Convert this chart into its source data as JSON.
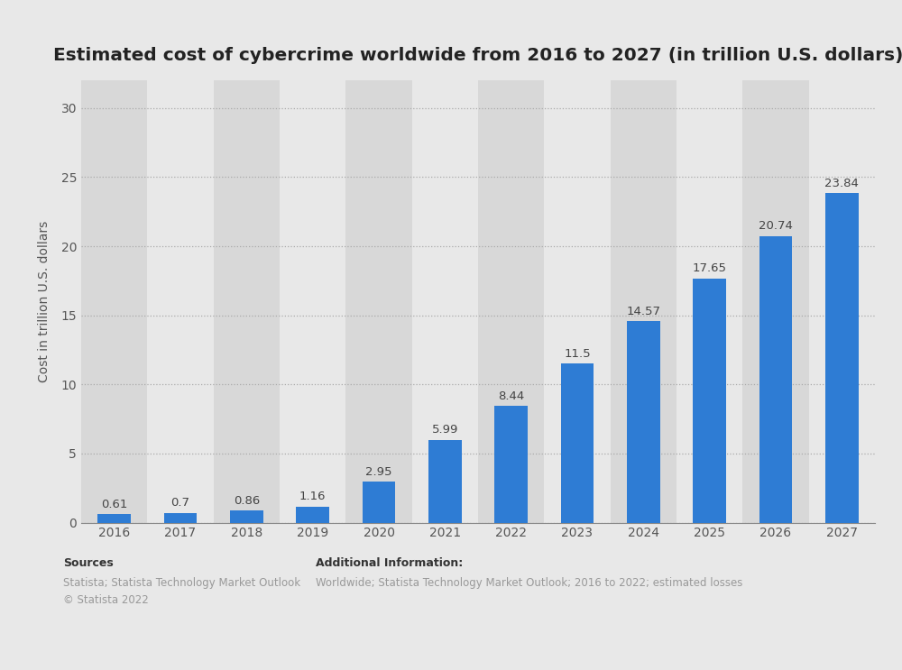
{
  "title": "Estimated cost of cybercrime worldwide from 2016 to 2027 (in trillion U.S. dollars)",
  "years": [
    "2016",
    "2017",
    "2018",
    "2019",
    "2020",
    "2021",
    "2022",
    "2023",
    "2024",
    "2025",
    "2026",
    "2027"
  ],
  "values": [
    0.61,
    0.7,
    0.86,
    1.16,
    2.95,
    5.99,
    8.44,
    11.5,
    14.57,
    17.65,
    20.74,
    23.84
  ],
  "bar_color": "#2e7cd4",
  "ylabel": "Cost in trillion U.S. dollars",
  "ylim": [
    0,
    32
  ],
  "yticks": [
    0,
    5,
    10,
    15,
    20,
    25,
    30
  ],
  "background_color": "#e8e8e8",
  "plot_bg_color": "#e8e8e8",
  "col_bg_light": "#e8e8e8",
  "col_bg_dark": "#d8d8d8",
  "grid_color": "#aaaaaa",
  "title_fontsize": 14.5,
  "label_fontsize": 10,
  "tick_fontsize": 10,
  "annotation_fontsize": 9.5,
  "sources_title": "Sources",
  "sources_text": "Statista; Statista Technology Market Outlook\n© Statista 2022",
  "additional_title": "Additional Information:",
  "additional_text": "Worldwide; Statista Technology Market Outlook; 2016 to 2022; estimated losses"
}
